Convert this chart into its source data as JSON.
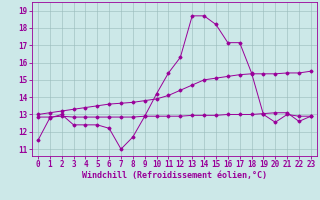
{
  "xlabel": "Windchill (Refroidissement éolien,°C)",
  "background_color": "#cce8e8",
  "line_color": "#990099",
  "grid_color": "#99bbbb",
  "x_ticks": [
    0,
    1,
    2,
    3,
    4,
    5,
    6,
    7,
    8,
    9,
    10,
    11,
    12,
    13,
    14,
    15,
    16,
    17,
    18,
    19,
    20,
    21,
    22,
    23
  ],
  "y_ticks": [
    11,
    12,
    13,
    14,
    15,
    16,
    17,
    18,
    19
  ],
  "ylim": [
    10.6,
    19.5
  ],
  "xlim": [
    -0.5,
    23.5
  ],
  "series1_x": [
    0,
    1,
    2,
    3,
    4,
    5,
    6,
    7,
    8,
    9,
    10,
    11,
    12,
    13,
    14,
    15,
    16,
    17,
    18,
    19,
    20,
    21,
    22,
    23
  ],
  "series1_y": [
    11.5,
    12.8,
    13.0,
    12.4,
    12.4,
    12.4,
    12.2,
    11.0,
    11.7,
    12.9,
    14.2,
    15.4,
    16.3,
    18.7,
    18.7,
    18.2,
    17.15,
    17.15,
    15.4,
    13.0,
    12.55,
    13.0,
    12.9,
    12.9
  ],
  "series2_x": [
    0,
    1,
    2,
    3,
    4,
    5,
    6,
    7,
    8,
    9,
    10,
    11,
    12,
    13,
    14,
    15,
    16,
    17,
    18,
    19,
    20,
    21,
    22,
    23
  ],
  "series2_y": [
    12.85,
    12.85,
    12.9,
    12.85,
    12.85,
    12.85,
    12.85,
    12.85,
    12.85,
    12.9,
    12.9,
    12.9,
    12.9,
    12.95,
    12.95,
    12.95,
    13.0,
    13.0,
    13.0,
    13.05,
    13.1,
    13.1,
    12.6,
    12.9
  ],
  "series3_x": [
    0,
    1,
    2,
    3,
    4,
    5,
    6,
    7,
    8,
    9,
    10,
    11,
    12,
    13,
    14,
    15,
    16,
    17,
    18,
    19,
    20,
    21,
    22,
    23
  ],
  "series3_y": [
    13.0,
    13.1,
    13.2,
    13.3,
    13.4,
    13.5,
    13.6,
    13.65,
    13.7,
    13.8,
    13.9,
    14.1,
    14.4,
    14.7,
    15.0,
    15.1,
    15.2,
    15.3,
    15.35,
    15.35,
    15.35,
    15.4,
    15.4,
    15.5
  ],
  "font_size": 6,
  "tick_font_size": 5.5,
  "marker": "D",
  "marker_size": 1.5,
  "linewidth": 0.7
}
